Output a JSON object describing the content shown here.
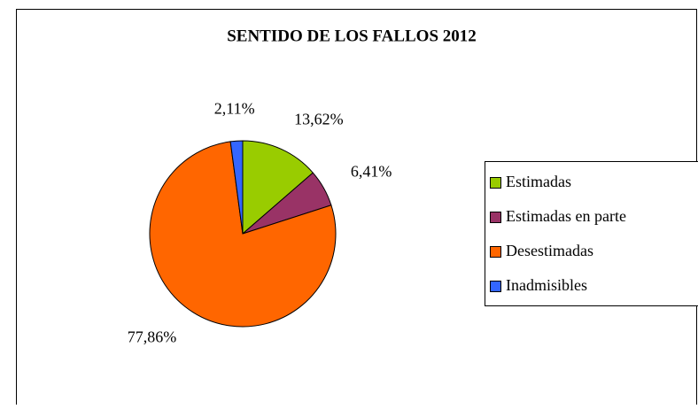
{
  "chart_data": {
    "type": "pie",
    "title": "SENTIDO DE LOS FALLOS 2012",
    "categories": [
      "Estimadas",
      "Estimadas en parte",
      "Desestimadas",
      "Inadmisibles"
    ],
    "values": [
      13.62,
      6.41,
      77.86,
      2.11
    ],
    "value_labels": [
      "13,62%",
      "6,41%",
      "77,86%",
      "2,11%"
    ],
    "colors": [
      "#99cc00",
      "#993366",
      "#ff6600",
      "#3366ff"
    ],
    "legend": "right"
  }
}
